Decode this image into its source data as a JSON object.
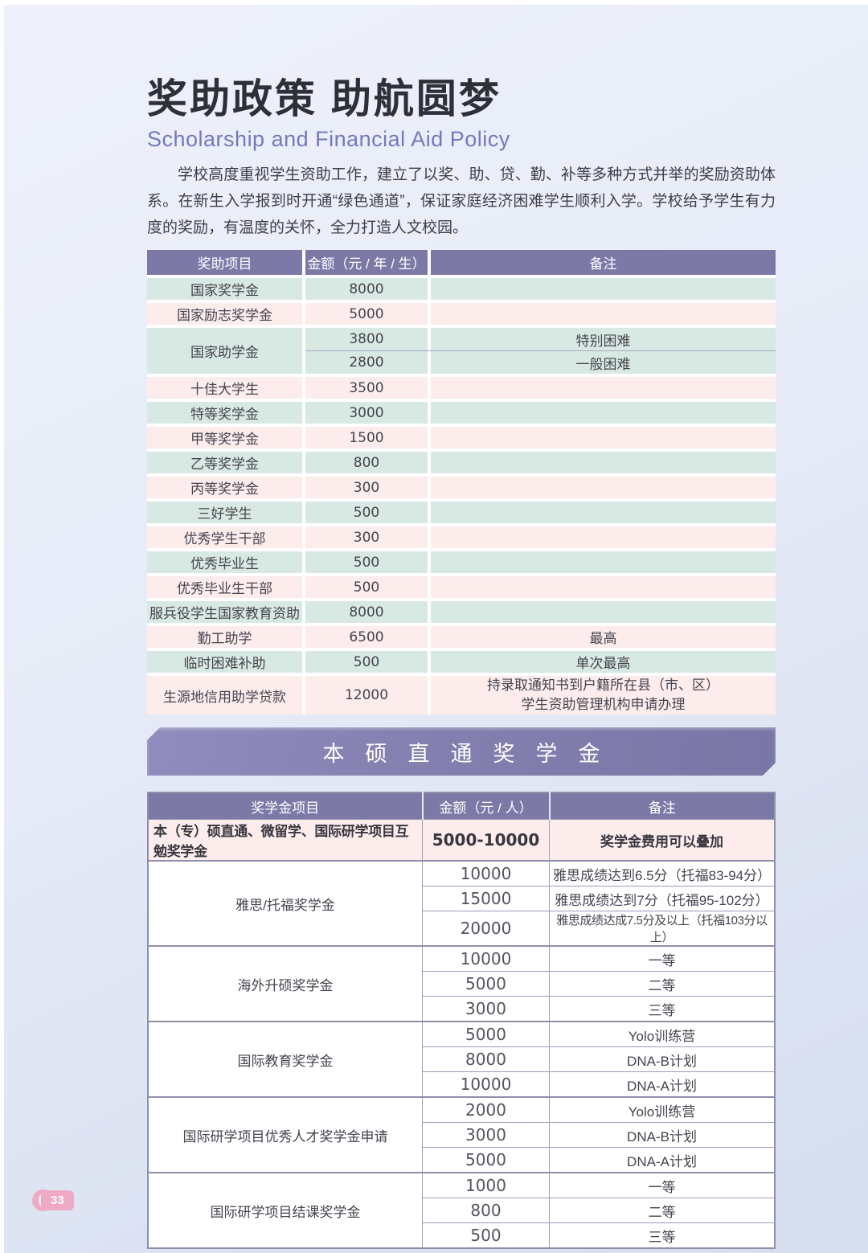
{
  "page": {
    "number": "33"
  },
  "header": {
    "title": "奖助政策 助航圆梦",
    "subtitle": "Scholarship and Financial Aid Policy",
    "intro": "学校高度重视学生资助工作，建立了以奖、助、贷、勤、补等多种方式并举的奖励资助体系。在新生入学报到时开通“绿色通道”，保证家庭经济困难学生顺利入学。学校给予学生有力度的奖励，有温度的关怀，全力打造人文校园。"
  },
  "aid_table": {
    "headers": [
      "奖助项目",
      "金额（元 / 年 / 生）",
      "备注"
    ],
    "rows": [
      {
        "item": "国家奖学金",
        "amount": "8000",
        "note": ""
      },
      {
        "item": "国家励志奖学金",
        "amount": "5000",
        "note": ""
      },
      {
        "item": "国家助学金",
        "sub": [
          {
            "amount": "3800",
            "note": "特别困难"
          },
          {
            "amount": "2800",
            "note": "一般困难"
          }
        ]
      },
      {
        "item": "十佳大学生",
        "amount": "3500",
        "note": ""
      },
      {
        "item": "特等奖学金",
        "amount": "3000",
        "note": ""
      },
      {
        "item": "甲等奖学金",
        "amount": "1500",
        "note": ""
      },
      {
        "item": "乙等奖学金",
        "amount": "800",
        "note": ""
      },
      {
        "item": "丙等奖学金",
        "amount": "300",
        "note": ""
      },
      {
        "item": "三好学生",
        "amount": "500",
        "note": ""
      },
      {
        "item": "优秀学生干部",
        "amount": "300",
        "note": ""
      },
      {
        "item": "优秀毕业生",
        "amount": "500",
        "note": ""
      },
      {
        "item": "优秀毕业生干部",
        "amount": "500",
        "note": ""
      },
      {
        "item": "服兵役学生国家教育资助",
        "amount": "8000",
        "note": ""
      },
      {
        "item": "勤工助学",
        "amount": "6500",
        "note": "最高"
      },
      {
        "item": "临时困难补助",
        "amount": "500",
        "note": "单次最高"
      },
      {
        "item": "生源地信用助学贷款",
        "amount": "12000",
        "note": "持录取通知书到户籍所在县（市、区）\n学生资助管理机构申请办理"
      }
    ]
  },
  "banner": {
    "title": "本硕直通奖学金"
  },
  "scholarship_table": {
    "headers": [
      "奖学金项目",
      "金额（元 / 人）",
      "备注"
    ],
    "highlight_row": {
      "item": "本（专）硕直通、微留学、国际研学项目互勉奖学金",
      "amount": "5000-10000",
      "note": "奖学金费用可以叠加"
    },
    "groups": [
      {
        "item": "雅思/托福奖学金",
        "rows": [
          {
            "amount": "10000",
            "note": "雅思成绩达到6.5分（托福83-94分）"
          },
          {
            "amount": "15000",
            "note": "雅思成绩达到7分（托福95-102分）"
          },
          {
            "amount": "20000",
            "note": "雅思成绩达成7.5分及以上（托福103分以上）"
          }
        ]
      },
      {
        "item": "海外升硕奖学金",
        "rows": [
          {
            "amount": "10000",
            "note": "一等"
          },
          {
            "amount": "5000",
            "note": "二等"
          },
          {
            "amount": "3000",
            "note": "三等"
          }
        ]
      },
      {
        "item": "国际教育奖学金",
        "rows": [
          {
            "amount": "5000",
            "note": "Yolo训练营"
          },
          {
            "amount": "8000",
            "note": "DNA-B计划"
          },
          {
            "amount": "10000",
            "note": "DNA-A计划"
          }
        ]
      },
      {
        "item": "国际研学项目优秀人才奖学金申请",
        "rows": [
          {
            "amount": "2000",
            "note": "Yolo训练营"
          },
          {
            "amount": "3000",
            "note": "DNA-B计划"
          },
          {
            "amount": "5000",
            "note": "DNA-A计划"
          }
        ]
      },
      {
        "item": "国际研学项目结课奖学金",
        "rows": [
          {
            "amount": "1000",
            "note": "一等"
          },
          {
            "amount": "800",
            "note": "二等"
          },
          {
            "amount": "500",
            "note": "三等"
          }
        ]
      }
    ]
  }
}
